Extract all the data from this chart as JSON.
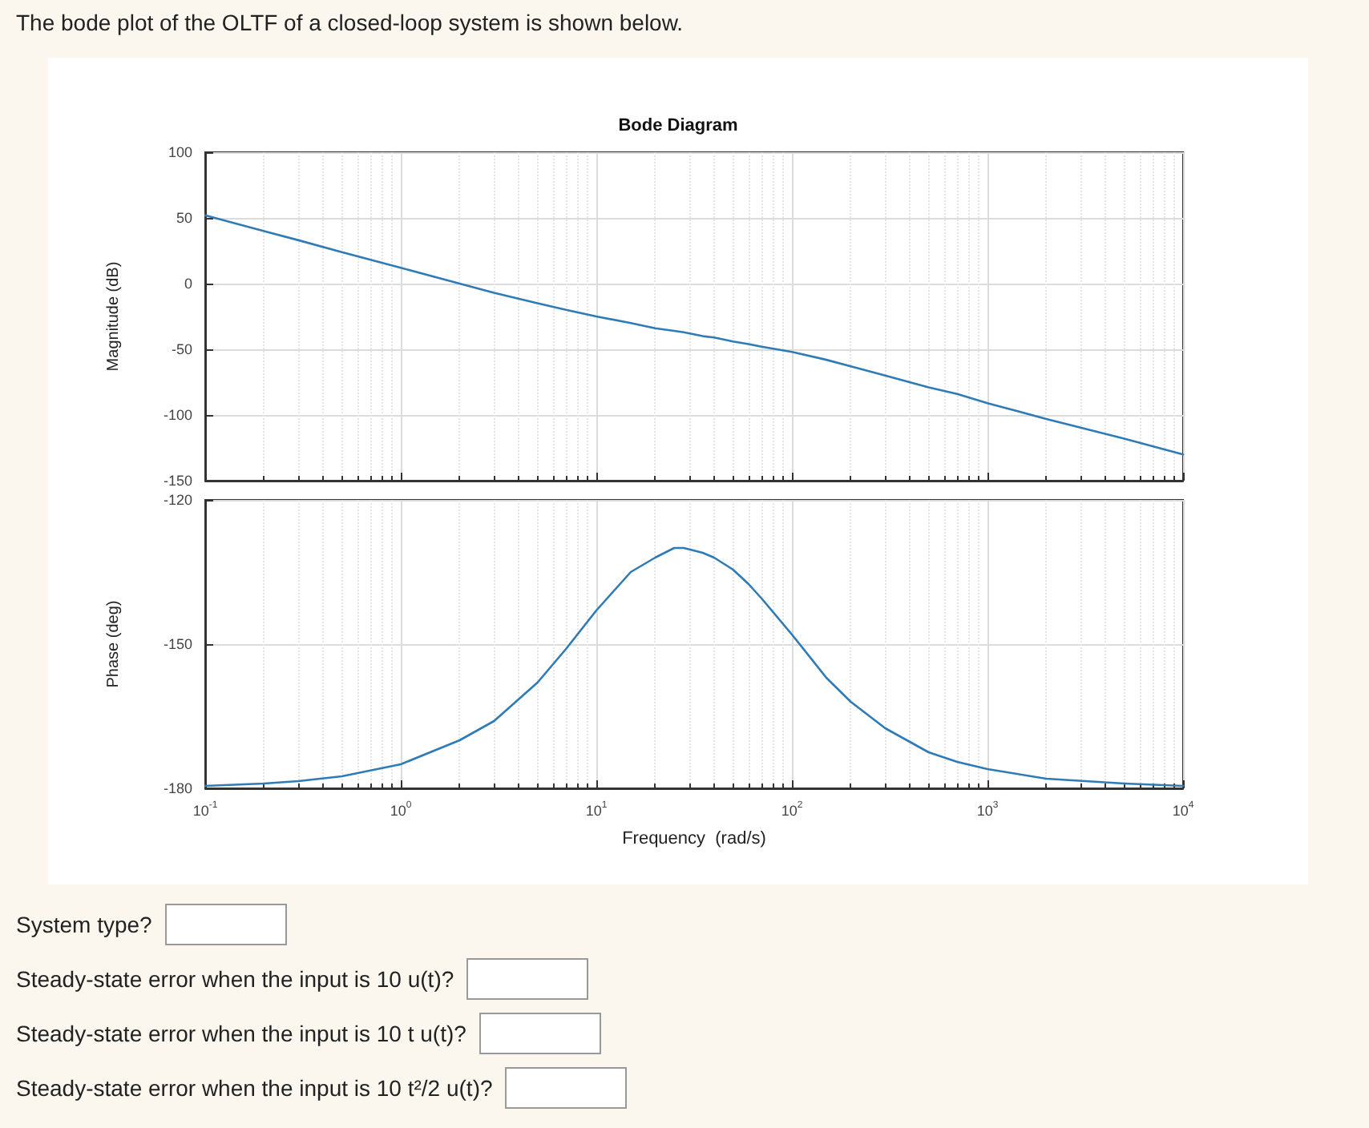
{
  "chart_data": [
    {
      "type": "line",
      "title": "Bode Diagram",
      "ylabel": "Magnitude (dB)",
      "annotations": [
        "The bode plot of the OLTF of a closed-loop system is shown below."
      ],
      "log": "x",
      "grid": true,
      "tick_labels": "y",
      "marker": "none",
      "line_style": "solid",
      "xlim": [
        0.1,
        10000
      ],
      "xticks": [
        {
          "value": 0.1,
          "label": null
        },
        {
          "value": 1,
          "label": null
        },
        {
          "value": 10,
          "label": null
        },
        {
          "value": 100,
          "label": null
        },
        {
          "value": 1000,
          "label": null
        },
        {
          "value": 10000,
          "label": null
        }
      ],
      "ylim": [
        -150,
        100
      ],
      "yticks": [
        -150,
        -100,
        -50,
        0,
        50,
        100
      ],
      "x": [
        0.1,
        0.2,
        0.3,
        0.5,
        1,
        2,
        3,
        5,
        7,
        10,
        15,
        20,
        25,
        28,
        35,
        40,
        50,
        60,
        70,
        100,
        150,
        200,
        300,
        500,
        700,
        1000,
        2000,
        5000,
        10000
      ],
      "series": [
        {
          "color": "#2f7bb6",
          "values": [
            52,
            40,
            33,
            24,
            12,
            0,
            -7,
            -15,
            -20,
            -25,
            -30,
            -34,
            -36,
            -37,
            -40,
            -41,
            -44,
            -46,
            -48,
            -52,
            -58,
            -63,
            -70,
            -79,
            -84,
            -91,
            -103,
            -118,
            -130
          ]
        }
      ]
    },
    {
      "type": "line",
      "xlabel": "Frequency  (rad/s)",
      "ylabel": "Phase (deg)",
      "annotations": [
        "System type?",
        "Steady-state error when the input is 10 u(t)?",
        "Steady-state error when the input is 10 t u(t)?",
        "Steady-state error when the input is 10 t²/2 u(t)?"
      ],
      "log": "x",
      "grid": true,
      "marker": "none",
      "line_style": "solid",
      "xlim": [
        0.1,
        10000
      ],
      "xticks": [
        {
          "value": 0.1,
          "label": "10$^{-1}$"
        },
        {
          "value": 1,
          "label": "10$^{0}$"
        },
        {
          "value": 10,
          "label": "10$^{1}$"
        },
        {
          "value": 100,
          "label": "10$^{2}$"
        },
        {
          "value": 1000,
          "label": "10$^{3}$"
        },
        {
          "value": 10000,
          "label": "10$^{4}$"
        }
      ],
      "ylim": [
        -180,
        -120
      ],
      "yticks": [
        -180,
        -150,
        -120
      ],
      "x": [
        0.1,
        0.2,
        0.3,
        0.5,
        1,
        2,
        3,
        5,
        7,
        10,
        15,
        20,
        25,
        28,
        35,
        40,
        50,
        60,
        70,
        100,
        150,
        200,
        300,
        500,
        700,
        1000,
        2000,
        5000,
        10000
      ],
      "series": [
        {
          "color": "#2f7bb6",
          "values": [
            -179.5,
            -179,
            -178.5,
            -177.5,
            -175,
            -170,
            -166,
            -158,
            -151,
            -143,
            -135,
            -132,
            -130,
            -130,
            -131,
            -132,
            -134.5,
            -137.5,
            -140.5,
            -148,
            -157,
            -162,
            -167.5,
            -172.5,
            -174.5,
            -176,
            -178,
            -179,
            -179.5
          ]
        }
      ]
    }
  ]
}
